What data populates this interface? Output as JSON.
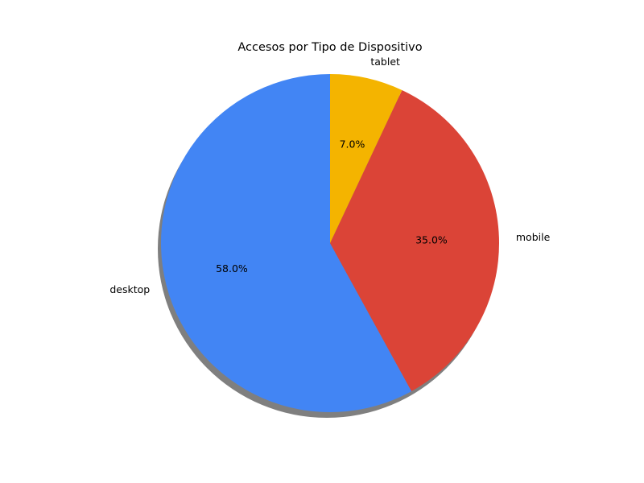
{
  "chart_data": {
    "type": "pie",
    "title": "Accesos por Tipo de Dispositivo",
    "categories": [
      "desktop",
      "mobile",
      "tablet"
    ],
    "values": [
      58.0,
      35.0,
      7.0
    ],
    "percent_labels": [
      "58.0%",
      "35.0%",
      "7.0%"
    ],
    "colors": [
      "#4285f4",
      "#db4437",
      "#f4b400"
    ],
    "start_angle_deg": 90,
    "direction": "counterclockwise",
    "shadow": true
  }
}
